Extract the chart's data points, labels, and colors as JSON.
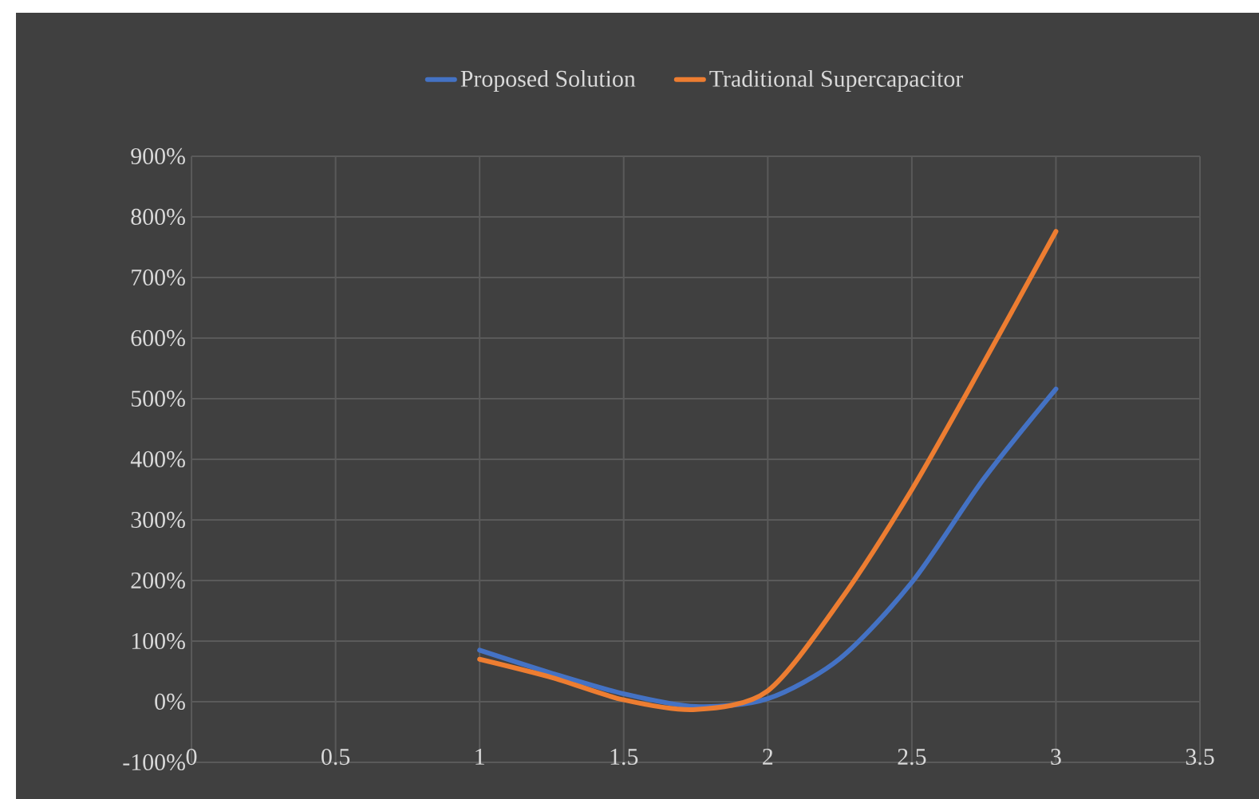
{
  "chart_data": {
    "type": "line",
    "x": [
      1,
      1.25,
      1.5,
      1.75,
      2,
      2.25,
      2.5,
      2.75,
      3
    ],
    "series": [
      {
        "name": "Proposed Solution",
        "color": "#4472c4",
        "values": [
          85,
          47,
          13,
          -8,
          5,
          71,
          197,
          368,
          516
        ]
      },
      {
        "name": "Traditional Supercapacitor",
        "color": "#ed7d31",
        "values": [
          70,
          40,
          3,
          -13,
          18,
          166,
          350,
          560,
          776
        ]
      }
    ],
    "xlim": [
      0,
      3.5
    ],
    "xticks": [
      0,
      0.5,
      1,
      1.5,
      2,
      2.5,
      3,
      3.5
    ],
    "ylim": [
      -100,
      900
    ],
    "yticks": [
      {
        "value": -100,
        "label": "-100%"
      },
      {
        "value": 0,
        "label": "0%"
      },
      {
        "value": 100,
        "label": "100%"
      },
      {
        "value": 200,
        "label": "200%"
      },
      {
        "value": 300,
        "label": "300%"
      },
      {
        "value": 400,
        "label": "400%"
      },
      {
        "value": 500,
        "label": "500%"
      },
      {
        "value": 600,
        "label": "600%"
      },
      {
        "value": 700,
        "label": "700%"
      },
      {
        "value": 800,
        "label": "800%"
      },
      {
        "value": 900,
        "label": "900%"
      }
    ],
    "grid": true,
    "legend": "top",
    "marker": "none",
    "line_style": "solid"
  }
}
